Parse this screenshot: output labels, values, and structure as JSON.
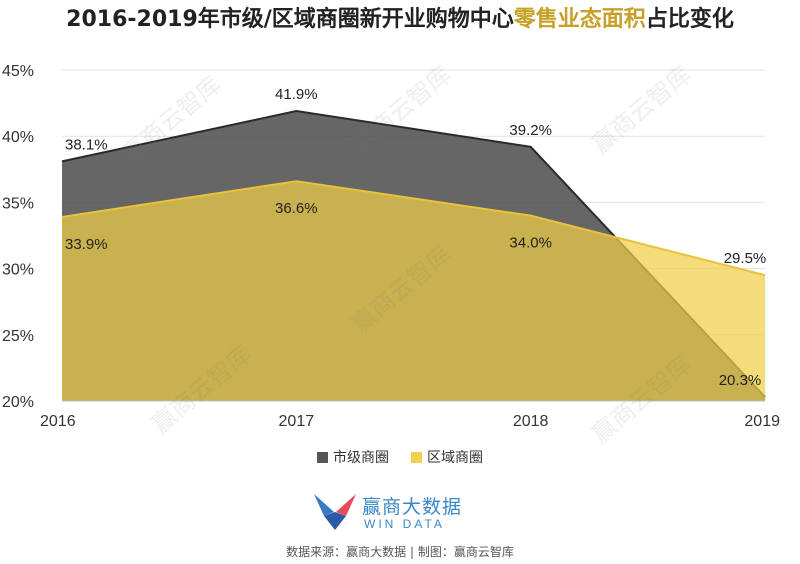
{
  "title": {
    "prefix": "2016-2019年市级/区域商圈新开业购物中心",
    "highlight": "零售业态面积",
    "suffix": "占比变化"
  },
  "chart_data": {
    "type": "area",
    "categories": [
      "2016",
      "2017",
      "2018",
      "2019"
    ],
    "series": [
      {
        "name": "市级商圈",
        "values": [
          38.1,
          41.9,
          39.2,
          20.3
        ],
        "labels": [
          "38.1%",
          "41.9%",
          "39.2%",
          "20.3%"
        ],
        "color": "#666666"
      },
      {
        "name": "区域商圈",
        "values": [
          33.9,
          36.6,
          34.0,
          29.5
        ],
        "labels": [
          "33.9%",
          "36.6%",
          "34.0%",
          "29.5%"
        ],
        "color": "#e8c23c"
      }
    ],
    "yticks": [
      "45%",
      "40%",
      "35%",
      "30%",
      "25%",
      "20%"
    ],
    "ylim": [
      20,
      45
    ],
    "grid": true
  },
  "legend": {
    "items": [
      "市级商圈",
      "区域商圈"
    ]
  },
  "logo": {
    "brand": "赢商大数据",
    "sub": "WIN DATA"
  },
  "source": "数据来源：赢商大数据 | 制图：赢商云智库",
  "watermark": "赢商云智库"
}
